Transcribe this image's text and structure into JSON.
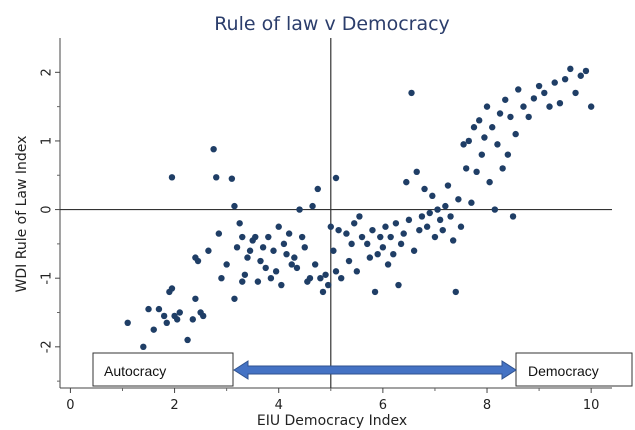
{
  "chart_data": {
    "type": "scatter",
    "title": "Rule of law v Democracy",
    "xlabel": "EIU Democracy Index",
    "ylabel": "WDI Rule of Law Index",
    "xlim": [
      -0.2,
      10.4
    ],
    "ylim": [
      -2.6,
      2.5
    ],
    "xticks": [
      "0",
      "2",
      "4",
      "6",
      "8",
      "10"
    ],
    "yticks": [
      "-2",
      "-1",
      "0",
      "1",
      "2"
    ],
    "reference_lines": {
      "x": 5,
      "y": 0
    },
    "point_color": "#1f3e66",
    "annotations": {
      "left_box": "Autocracy",
      "right_box": "Democracy",
      "arrow_color": "#4472c4"
    },
    "points": [
      [
        1.1,
        -1.65
      ],
      [
        1.4,
        -2.0
      ],
      [
        1.5,
        -1.45
      ],
      [
        1.6,
        -1.75
      ],
      [
        1.7,
        -1.45
      ],
      [
        1.8,
        -1.55
      ],
      [
        1.85,
        -1.65
      ],
      [
        1.9,
        -1.2
      ],
      [
        1.95,
        -1.15
      ],
      [
        1.95,
        0.47
      ],
      [
        2.0,
        -1.55
      ],
      [
        2.05,
        -1.6
      ],
      [
        2.1,
        -1.5
      ],
      [
        2.25,
        -1.9
      ],
      [
        2.35,
        -1.6
      ],
      [
        2.4,
        -0.7
      ],
      [
        2.4,
        -1.3
      ],
      [
        2.45,
        -0.75
      ],
      [
        2.5,
        -1.5
      ],
      [
        2.55,
        -1.55
      ],
      [
        2.65,
        -0.6
      ],
      [
        2.75,
        0.88
      ],
      [
        2.8,
        0.47
      ],
      [
        2.85,
        -0.35
      ],
      [
        2.9,
        -1.0
      ],
      [
        3.0,
        -0.8
      ],
      [
        3.1,
        0.45
      ],
      [
        3.15,
        0.05
      ],
      [
        3.15,
        -1.3
      ],
      [
        3.2,
        -0.55
      ],
      [
        3.25,
        -0.2
      ],
      [
        3.3,
        -0.4
      ],
      [
        3.3,
        -1.05
      ],
      [
        3.35,
        -0.95
      ],
      [
        3.4,
        -0.7
      ],
      [
        3.45,
        -0.6
      ],
      [
        3.5,
        -0.45
      ],
      [
        3.55,
        -0.4
      ],
      [
        3.6,
        -1.05
      ],
      [
        3.65,
        -0.75
      ],
      [
        3.7,
        -0.55
      ],
      [
        3.75,
        -0.85
      ],
      [
        3.8,
        -0.4
      ],
      [
        3.85,
        -1.0
      ],
      [
        3.9,
        -0.6
      ],
      [
        3.95,
        -0.9
      ],
      [
        4.0,
        -0.25
      ],
      [
        4.05,
        -1.1
      ],
      [
        4.1,
        -0.5
      ],
      [
        4.15,
        -0.65
      ],
      [
        4.2,
        -0.35
      ],
      [
        4.25,
        -0.8
      ],
      [
        4.3,
        -0.7
      ],
      [
        4.35,
        -0.85
      ],
      [
        4.4,
        0.0
      ],
      [
        4.45,
        -0.4
      ],
      [
        4.5,
        -0.55
      ],
      [
        4.55,
        -1.05
      ],
      [
        4.6,
        -1.0
      ],
      [
        4.65,
        0.05
      ],
      [
        4.7,
        -0.8
      ],
      [
        4.75,
        0.3
      ],
      [
        4.8,
        -1.0
      ],
      [
        4.85,
        -1.2
      ],
      [
        4.9,
        -0.95
      ],
      [
        4.95,
        -1.1
      ],
      [
        5.0,
        -0.25
      ],
      [
        5.05,
        -0.6
      ],
      [
        5.1,
        0.46
      ],
      [
        5.1,
        -0.9
      ],
      [
        5.15,
        -0.3
      ],
      [
        5.2,
        -1.0
      ],
      [
        5.3,
        -0.35
      ],
      [
        5.35,
        -0.75
      ],
      [
        5.4,
        -0.5
      ],
      [
        5.45,
        -0.2
      ],
      [
        5.5,
        -0.9
      ],
      [
        5.55,
        -0.1
      ],
      [
        5.6,
        -0.4
      ],
      [
        5.7,
        -0.5
      ],
      [
        5.75,
        -0.7
      ],
      [
        5.8,
        -0.3
      ],
      [
        5.85,
        -1.2
      ],
      [
        5.9,
        -0.65
      ],
      [
        5.95,
        -0.4
      ],
      [
        6.0,
        -0.55
      ],
      [
        6.05,
        -0.25
      ],
      [
        6.1,
        -0.8
      ],
      [
        6.15,
        -0.4
      ],
      [
        6.2,
        -0.65
      ],
      [
        6.25,
        -0.2
      ],
      [
        6.3,
        -1.1
      ],
      [
        6.35,
        -0.5
      ],
      [
        6.4,
        -0.35
      ],
      [
        6.45,
        0.4
      ],
      [
        6.5,
        -0.15
      ],
      [
        6.55,
        1.7
      ],
      [
        6.6,
        -0.6
      ],
      [
        6.65,
        0.55
      ],
      [
        6.7,
        -0.3
      ],
      [
        6.75,
        -0.1
      ],
      [
        6.8,
        0.3
      ],
      [
        6.85,
        -0.25
      ],
      [
        6.9,
        -0.05
      ],
      [
        6.95,
        0.2
      ],
      [
        7.0,
        -0.4
      ],
      [
        7.05,
        0.0
      ],
      [
        7.1,
        -0.15
      ],
      [
        7.15,
        -0.3
      ],
      [
        7.2,
        0.05
      ],
      [
        7.25,
        0.35
      ],
      [
        7.3,
        -0.1
      ],
      [
        7.35,
        -0.45
      ],
      [
        7.4,
        -1.2
      ],
      [
        7.45,
        0.15
      ],
      [
        7.5,
        -0.25
      ],
      [
        7.55,
        0.95
      ],
      [
        7.6,
        0.6
      ],
      [
        7.65,
        1.0
      ],
      [
        7.7,
        0.1
      ],
      [
        7.75,
        1.2
      ],
      [
        7.8,
        0.55
      ],
      [
        7.85,
        1.3
      ],
      [
        7.9,
        0.8
      ],
      [
        7.95,
        1.05
      ],
      [
        8.0,
        1.5
      ],
      [
        8.05,
        0.4
      ],
      [
        8.1,
        1.2
      ],
      [
        8.15,
        0.0
      ],
      [
        8.2,
        0.95
      ],
      [
        8.25,
        1.4
      ],
      [
        8.3,
        0.6
      ],
      [
        8.35,
        1.6
      ],
      [
        8.4,
        0.8
      ],
      [
        8.45,
        1.35
      ],
      [
        8.5,
        -0.1
      ],
      [
        8.55,
        1.1
      ],
      [
        8.6,
        1.75
      ],
      [
        8.7,
        1.5
      ],
      [
        8.8,
        1.35
      ],
      [
        8.9,
        1.62
      ],
      [
        9.0,
        1.8
      ],
      [
        9.1,
        1.7
      ],
      [
        9.2,
        1.5
      ],
      [
        9.3,
        1.85
      ],
      [
        9.4,
        1.55
      ],
      [
        9.5,
        1.9
      ],
      [
        9.6,
        2.05
      ],
      [
        9.7,
        1.7
      ],
      [
        9.8,
        1.95
      ],
      [
        9.9,
        2.02
      ],
      [
        10.0,
        1.5
      ]
    ]
  }
}
